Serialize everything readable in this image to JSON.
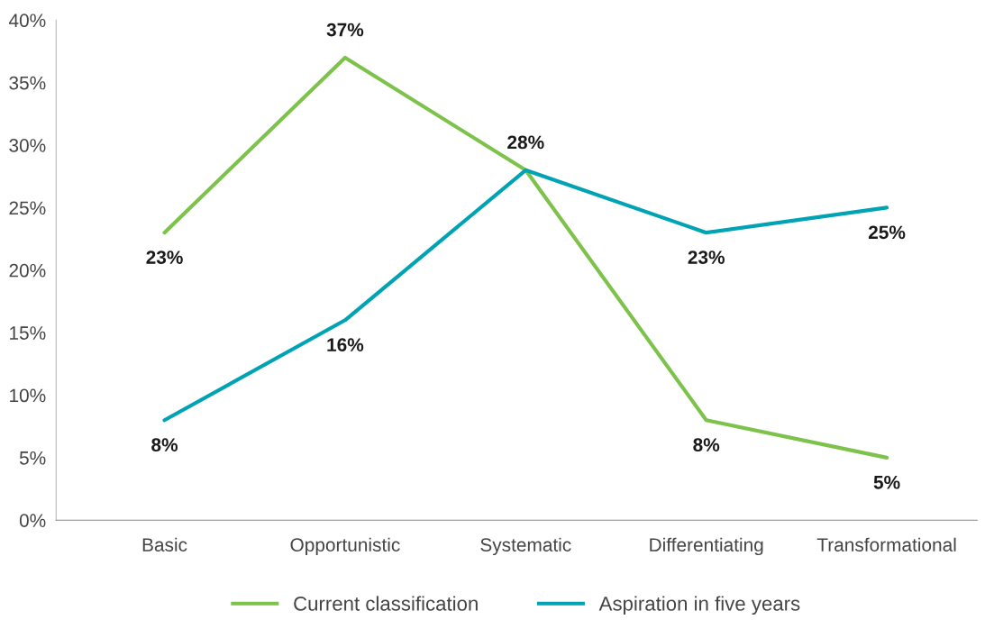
{
  "chart_data": {
    "type": "line",
    "categories": [
      "Basic",
      "Opportunistic",
      "Systematic",
      "Differentiating",
      "Transformational"
    ],
    "series": [
      {
        "name": "Current classification",
        "color": "#7dc24b",
        "values": [
          23,
          37,
          28,
          8,
          5
        ],
        "value_labels": [
          "23%",
          "37%",
          "28%",
          "8%",
          "5%"
        ]
      },
      {
        "name": "Aspiration in five years",
        "color": "#00a3b4",
        "values": [
          8,
          16,
          28,
          23,
          25
        ],
        "value_labels": [
          "8%",
          "16%",
          null,
          "23%",
          "25%"
        ]
      }
    ],
    "ylim": [
      0,
      40
    ],
    "yticks": [
      {
        "value": 0,
        "label": "0%"
      },
      {
        "value": 5,
        "label": "5%"
      },
      {
        "value": 10,
        "label": "10%"
      },
      {
        "value": 15,
        "label": "15%"
      },
      {
        "value": 20,
        "label": "20%"
      },
      {
        "value": 25,
        "label": "25%"
      },
      {
        "value": 30,
        "label": "30%"
      },
      {
        "value": 35,
        "label": "35%"
      },
      {
        "value": 40,
        "label": "40%"
      }
    ],
    "grid": false,
    "legend": "bottom",
    "marker": "none",
    "line_style": "solid"
  }
}
